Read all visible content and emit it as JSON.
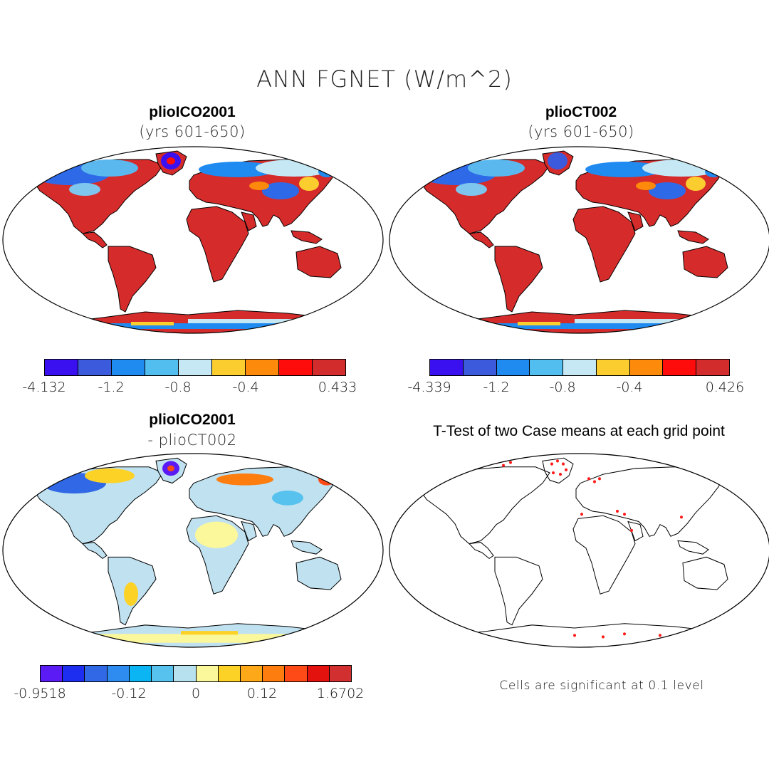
{
  "title": "ANN FGNET (W/m^2)",
  "colors": {
    "cb9": [
      "#3a10f0",
      "#3b5adc",
      "#1f8af0",
      "#52bef0",
      "#c6e8f5",
      "#fccd2e",
      "#fd8a0a",
      "#fe0c0c",
      "#d22c2c"
    ],
    "cb14": [
      "#5a1bf5",
      "#1e2ef0",
      "#3168e6",
      "#2e8cf0",
      "#0bb4f2",
      "#57c2ee",
      "#b8e1f0",
      "#fbf79b",
      "#fdd227",
      "#fca819",
      "#fd7d0f",
      "#fe4a16",
      "#e3120e",
      "#d23030"
    ],
    "land_top": "#d52b2b",
    "land_diff": "#bfe1f0",
    "sig_dots": "#ff1a1a"
  },
  "panels": [
    {
      "id": "top-left",
      "title": "plioICO2001",
      "subtitle": "(yrs 601-650)",
      "colorbar_labels": [
        "-4.132",
        "-1.2",
        "-0.8",
        "-0.4",
        "0.433"
      ]
    },
    {
      "id": "top-right",
      "title": "plioCT002",
      "subtitle": "(yrs 601-650)",
      "colorbar_labels": [
        "-4.339",
        "-1.2",
        "-0.8",
        "-0.4",
        "0.426"
      ]
    },
    {
      "id": "bottom-left",
      "title": "plioICO2001",
      "subtitle": "- plioCT002",
      "colorbar_labels": [
        "-0.9518",
        "-0.12",
        "0",
        "0.12",
        "1.6702"
      ]
    },
    {
      "id": "bottom-right",
      "title": "T-Test of two Case means at each grid point",
      "note": "Cells are significant at 0.1 level"
    }
  ]
}
